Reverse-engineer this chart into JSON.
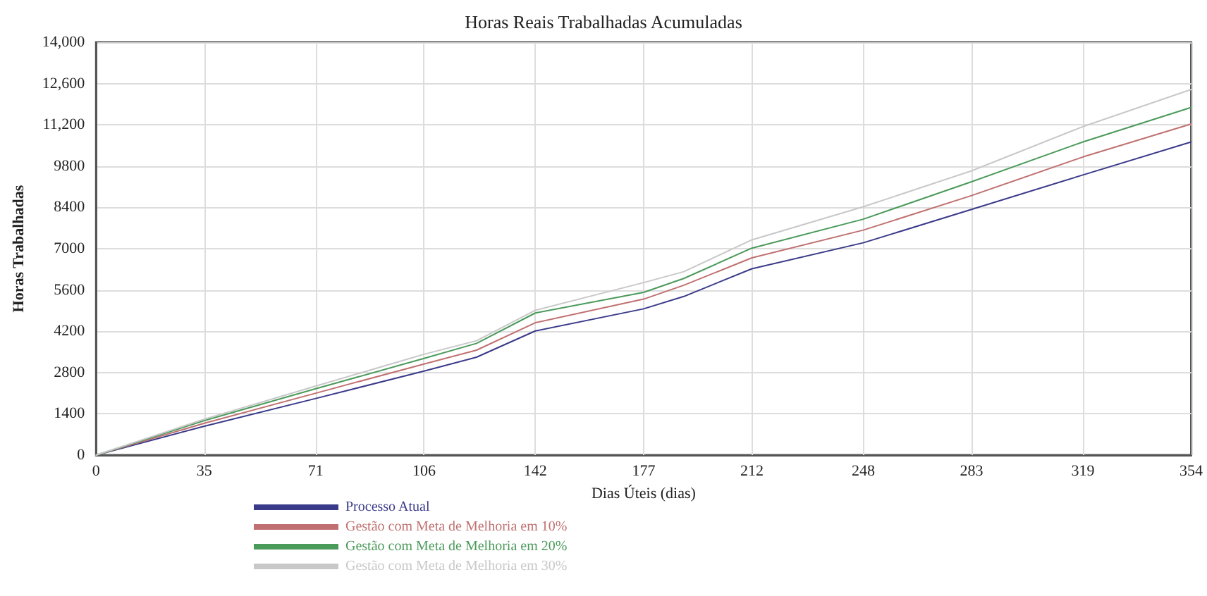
{
  "chart_data": {
    "type": "line",
    "title": "Horas Reais Trabalhadas Acumuladas",
    "xlabel": "Dias Úteis (dias)",
    "ylabel": "Horas Trabalhadas",
    "x": [
      0,
      35,
      71,
      106,
      123,
      142,
      177,
      190,
      212,
      248,
      283,
      319,
      354
    ],
    "series": [
      {
        "name": "Processo Atual",
        "color": "#3a3a8a",
        "values": [
          0,
          980,
          1920,
          2850,
          3320,
          4210,
          4960,
          5380,
          6320,
          7200,
          8330,
          9500,
          10620
        ]
      },
      {
        "name": "Gestão com Meta de Melhoria em 10%",
        "color": "#c07070",
        "values": [
          0,
          1080,
          2100,
          3090,
          3560,
          4490,
          5290,
          5760,
          6690,
          7630,
          8800,
          10110,
          11230
        ]
      },
      {
        "name": "Gestão com Meta de Melhoria em 20%",
        "color": "#4a9a5a",
        "values": [
          0,
          1170,
          2250,
          3280,
          3790,
          4820,
          5520,
          5990,
          7020,
          8000,
          9270,
          10620,
          11790
        ]
      },
      {
        "name": "Gestão com Meta de Melhoria em 30%",
        "color": "#c8c8c8",
        "values": [
          0,
          1220,
          2340,
          3420,
          3880,
          4910,
          5850,
          6220,
          7300,
          8420,
          9640,
          11140,
          12400
        ]
      }
    ],
    "xlim": [
      0,
      354
    ],
    "xticks": [
      0,
      35,
      71,
      106,
      142,
      177,
      212,
      248,
      283,
      319,
      354
    ],
    "ylim": [
      0,
      14000
    ],
    "yticks": [
      0,
      1400,
      2800,
      4200,
      5600,
      7000,
      8400,
      9800,
      {
        "value": 11200,
        "label": "11,200"
      },
      {
        "value": 12600,
        "label": "12,600"
      },
      {
        "value": 14000,
        "label": "14,000"
      }
    ],
    "grid": true,
    "legend": "bottom",
    "marker": "none",
    "line_style": "solid"
  }
}
